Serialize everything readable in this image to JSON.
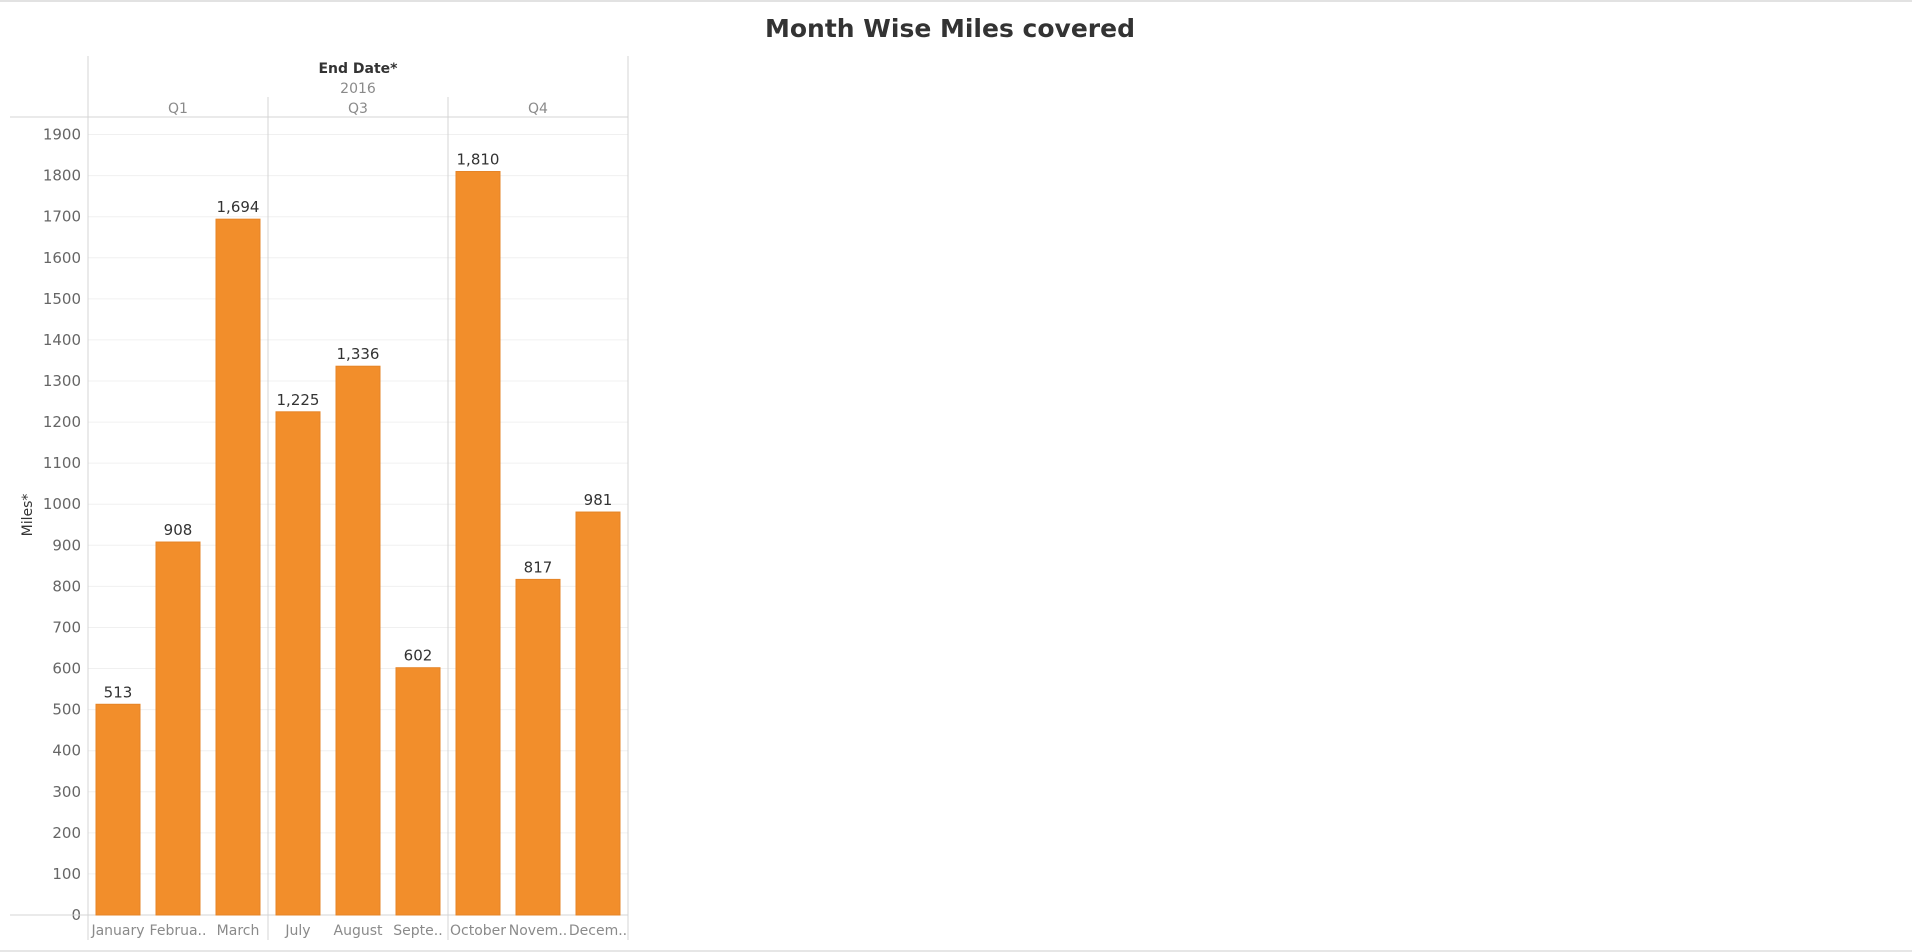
{
  "page": {
    "title": "Month Wise Miles covered"
  },
  "header": {
    "field": "End Date*",
    "year": "2016"
  },
  "colors": {
    "bar": "#f28e2b",
    "bar_stroke": "#e58427",
    "grid": "#f0f0f0",
    "divider": "#d4d4d4",
    "text": "#333333",
    "muted": "#8a8a8a",
    "tick": "#666666"
  },
  "chart_data": {
    "type": "bar",
    "title": "Month Wise Miles covered",
    "ylabel": "Miles*",
    "xlabel": "End Date*",
    "ylim": [
      0,
      1950
    ],
    "yticks": [
      0,
      100,
      200,
      300,
      400,
      500,
      600,
      700,
      800,
      900,
      1000,
      1100,
      1200,
      1300,
      1400,
      1500,
      1600,
      1700,
      1800,
      1900
    ],
    "grid": true,
    "groups": [
      {
        "label": "Q1",
        "categories": [
          "January",
          "Februa..",
          "March"
        ]
      },
      {
        "label": "Q3",
        "categories": [
          "July",
          "August",
          "Septe.."
        ]
      },
      {
        "label": "Q4",
        "categories": [
          "October",
          "Novem..",
          "Decem.."
        ]
      }
    ],
    "categories": [
      "January",
      "Februa..",
      "March",
      "July",
      "August",
      "Septe..",
      "October",
      "Novem..",
      "Decem.."
    ],
    "values": [
      513,
      908,
      1694,
      1225,
      1336,
      602,
      1810,
      817,
      981
    ],
    "data_labels": [
      "513",
      "908",
      "1,694",
      "1,225",
      "1,336",
      "602",
      "1,810",
      "817",
      "981"
    ]
  }
}
